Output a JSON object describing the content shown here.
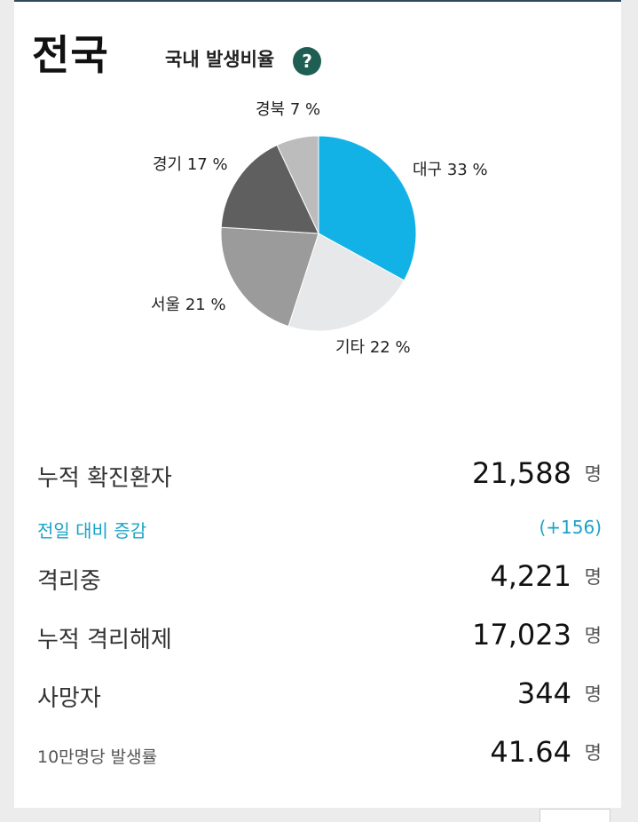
{
  "header": {
    "title": "전국",
    "subtitle": "국내 발생비율",
    "help_icon": "question-icon",
    "help_label": "?"
  },
  "colors": {
    "accent": "#1aa3c7",
    "help_badge": "#1f5e52"
  },
  "chart_data": {
    "type": "pie",
    "title": "",
    "slices": [
      {
        "label": "대구 33 %",
        "name": "대구",
        "value": 33,
        "color": "#12b2e6"
      },
      {
        "label": "기타 22 %",
        "name": "기타",
        "value": 22,
        "color": "#e6e8ea"
      },
      {
        "label": "서울 21 %",
        "name": "서울",
        "value": 21,
        "color": "#9b9b9b"
      },
      {
        "label": "경기 17 %",
        "name": "경기",
        "value": 17,
        "color": "#5f5f5f"
      },
      {
        "label": "경북 7 %",
        "name": "경북",
        "value": 7,
        "color": "#bcbcbc"
      }
    ]
  },
  "stats": {
    "confirmed": {
      "label": "누적 확진환자",
      "value": "21,588",
      "unit": "명"
    },
    "delta": {
      "label": "전일 대비 증감",
      "value": "(+156)"
    },
    "isolating": {
      "label": "격리중",
      "value": "4,221",
      "unit": "명"
    },
    "released": {
      "label": "누적 격리해제",
      "value": "17,023",
      "unit": "명"
    },
    "deaths": {
      "label": "사망자",
      "value": "344",
      "unit": "명"
    },
    "incidence": {
      "label": "10만명당 발생률",
      "value": "41.64",
      "unit": "명"
    }
  }
}
